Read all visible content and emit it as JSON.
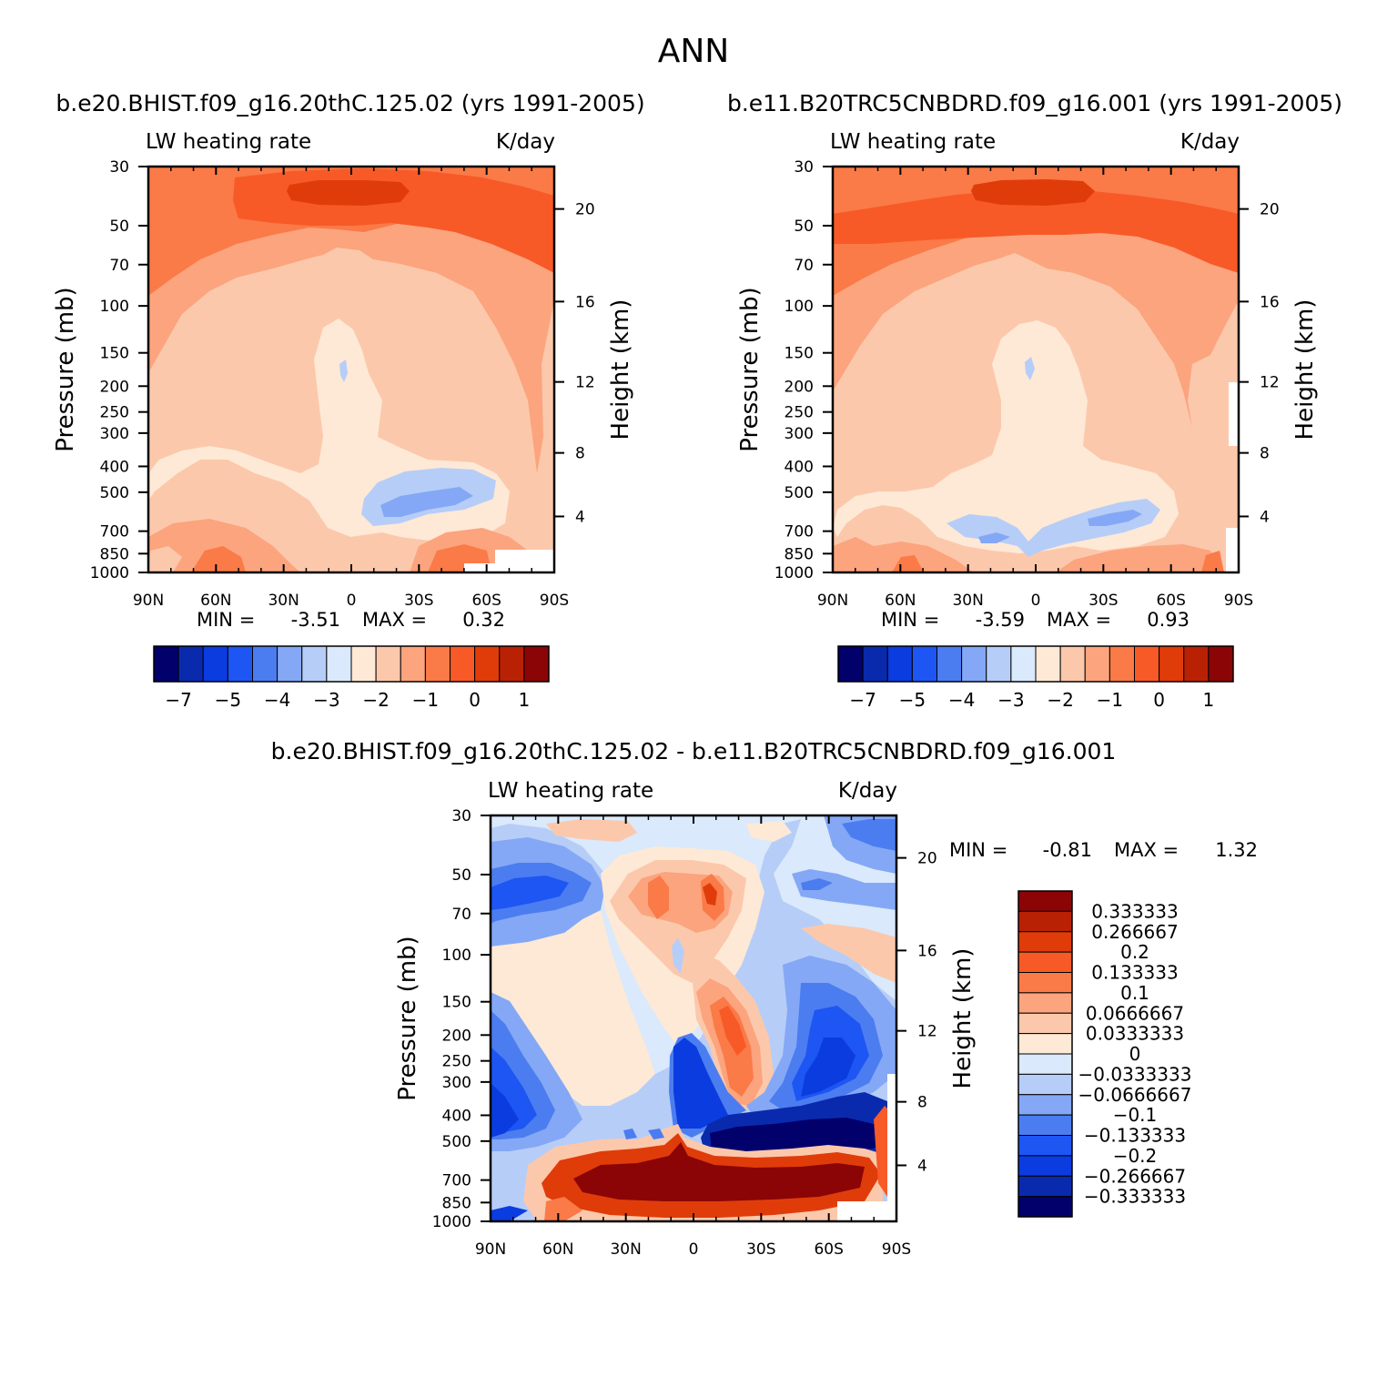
{
  "title": "ANN",
  "panels": [
    {
      "run_title": "b.e20.BHIST.f09_g16.20thC.125.02 (yrs 1991-2005)",
      "left_label": "LW heating rate",
      "right_label": "K/day",
      "stats": {
        "min_label": "MIN =",
        "min": "-3.51",
        "max_label": "MAX =",
        "max": "0.32"
      }
    },
    {
      "run_title": "b.e11.B20TRC5CNBDRD.f09_g16.001 (yrs 1991-2005)",
      "left_label": "LW heating rate",
      "right_label": "K/day",
      "stats": {
        "min_label": "MIN =",
        "min": "-3.59",
        "max_label": "MAX =",
        "max": "0.93"
      }
    },
    {
      "run_title": "b.e20.BHIST.f09_g16.20thC.125.02 - b.e11.B20TRC5CNBDRD.f09_g16.001",
      "left_label": "LW heating rate",
      "right_label": "K/day",
      "stats": {
        "min_label": "MIN =",
        "min": "-0.81",
        "max_label": "MAX =",
        "max": "1.32"
      }
    }
  ],
  "chart_data": [
    {
      "type": "heatmap",
      "title": "b.e20.BHIST.f09_g16.20thC.125.02 (yrs 1991-2005)",
      "ylabel": "Pressure (mb)",
      "y2label": "Height (km)",
      "x_ticks": [
        "90N",
        "60N",
        "30N",
        "0",
        "30S",
        "60S",
        "90S"
      ],
      "x_range": [
        90,
        -90
      ],
      "y_ticks": [
        30,
        50,
        70,
        100,
        150,
        200,
        250,
        300,
        400,
        500,
        700,
        850,
        1000
      ],
      "y_range": [
        30,
        1000
      ],
      "y_scale": "log",
      "y2_ticks": [
        4,
        8,
        12,
        16,
        20
      ],
      "colorbar": {
        "colors": [
          "#02006b",
          "#0a2aad",
          "#0b3ce0",
          "#1d56f2",
          "#4b7df0",
          "#84a8f5",
          "#b6cdf8",
          "#dae9fb",
          "#fde9d6",
          "#fcc8ab",
          "#fba47e",
          "#fa7a48",
          "#f75a27",
          "#e03c0a",
          "#b92104",
          "#8b0506"
        ],
        "tick_labels": [
          "-7",
          "-5",
          "-4",
          "-3",
          "-2",
          "-1",
          "0",
          "1"
        ]
      },
      "min": -3.51,
      "max": 0.32
    },
    {
      "type": "heatmap",
      "title": "b.e11.B20TRC5CNBDRD.f09_g16.001 (yrs 1991-2005)",
      "ylabel": "Pressure (mb)",
      "y2label": "Height (km)",
      "x_ticks": [
        "90N",
        "60N",
        "30N",
        "0",
        "30S",
        "60S",
        "90S"
      ],
      "x_range": [
        90,
        -90
      ],
      "y_ticks": [
        30,
        50,
        70,
        100,
        150,
        200,
        250,
        300,
        400,
        500,
        700,
        850,
        1000
      ],
      "y_range": [
        30,
        1000
      ],
      "y_scale": "log",
      "y2_ticks": [
        4,
        8,
        12,
        16,
        20
      ],
      "colorbar": {
        "colors": [
          "#02006b",
          "#0a2aad",
          "#0b3ce0",
          "#1d56f2",
          "#4b7df0",
          "#84a8f5",
          "#b6cdf8",
          "#dae9fb",
          "#fde9d6",
          "#fcc8ab",
          "#fba47e",
          "#fa7a48",
          "#f75a27",
          "#e03c0a",
          "#b92104",
          "#8b0506"
        ],
        "tick_labels": [
          "-7",
          "-5",
          "-4",
          "-3",
          "-2",
          "-1",
          "0",
          "1"
        ]
      },
      "min": -3.59,
      "max": 0.93
    },
    {
      "type": "heatmap",
      "title": "b.e20.BHIST.f09_g16.20thC.125.02 - b.e11.B20TRC5CNBDRD.f09_g16.001",
      "ylabel": "Pressure (mb)",
      "y2label": "Height (km)",
      "x_ticks": [
        "90N",
        "60N",
        "30N",
        "0",
        "30S",
        "60S",
        "90S"
      ],
      "x_range": [
        90,
        -90
      ],
      "y_ticks": [
        30,
        50,
        70,
        100,
        150,
        200,
        250,
        300,
        400,
        500,
        700,
        850,
        1000
      ],
      "y_range": [
        30,
        1000
      ],
      "y_scale": "log",
      "y2_ticks": [
        4,
        8,
        12,
        16,
        20
      ],
      "colorbar": {
        "orientation": "vertical",
        "colors": [
          "#8b0506",
          "#b92104",
          "#e03c0a",
          "#f75a27",
          "#fa7a48",
          "#fba47e",
          "#fcc8ab",
          "#fde9d6",
          "#dae9fb",
          "#b6cdf8",
          "#84a8f5",
          "#4b7df0",
          "#1d56f2",
          "#0b3ce0",
          "#0a2aad",
          "#02006b"
        ],
        "tick_labels": [
          "0.333333",
          "0.266667",
          "0.2",
          "0.133333",
          "0.1",
          "0.0666667",
          "0.0333333",
          "0",
          "-0.0333333",
          "-0.0666667",
          "-0.1",
          "-0.133333",
          "-0.2",
          "-0.266667",
          "-0.333333"
        ]
      },
      "min": -0.81,
      "max": 1.32
    }
  ]
}
